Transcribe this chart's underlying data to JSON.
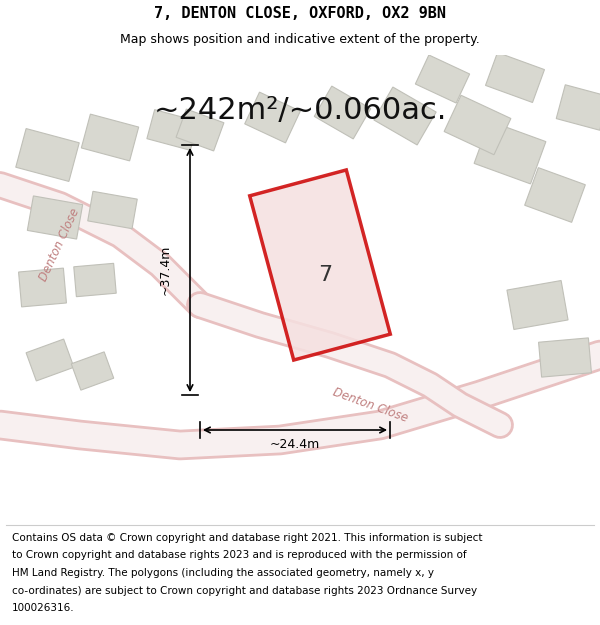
{
  "title_line1": "7, DENTON CLOSE, OXFORD, OX2 9BN",
  "title_line2": "Map shows position and indicative extent of the property.",
  "area_text": "~242m²/~0.060ac.",
  "label_width": "~24.4m",
  "label_height": "~37.4m",
  "property_label": "7",
  "footer_text": "Contains OS data © Crown copyright and database right 2021. This information is subject to Crown copyright and database rights 2023 and is reproduced with the permission of HM Land Registry. The polygons (including the associated geometry, namely x, y co-ordinates) are subject to Crown copyright and database rights 2023 Ordnance Survey 100026316.",
  "bg_color": "#f5f5f0",
  "map_bg": "#f0ede8",
  "plot_color_fill": "#f5e8e8",
  "plot_color_edge": "#cc0000",
  "road_color": "#e8c0c0",
  "building_fill": "#d8d8d0",
  "building_edge": "#c0c0b8",
  "footer_bg": "#ffffff",
  "title_fontsize": 11,
  "subtitle_fontsize": 9,
  "area_fontsize": 22,
  "label_fontsize": 9,
  "footer_fontsize": 7.5
}
